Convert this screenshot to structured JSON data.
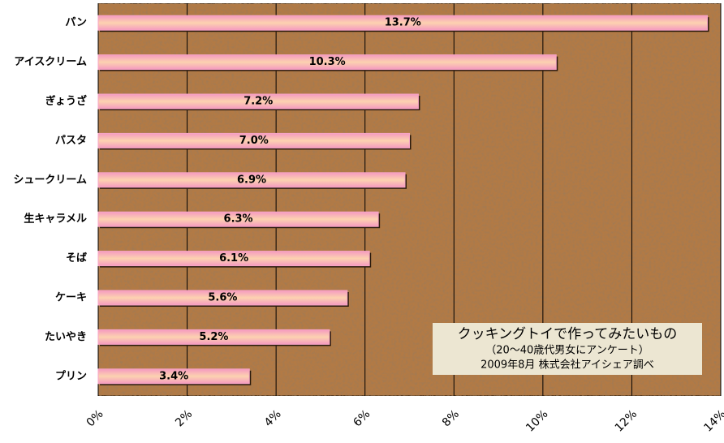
{
  "chart_data": {
    "type": "hbar",
    "categories": [
      "パン",
      "アイスクリーム",
      "ぎょうざ",
      "パスタ",
      "シュークリーム",
      "生キャラメル",
      "そば",
      "ケーキ",
      "たいやき",
      "プリン"
    ],
    "values": [
      13.7,
      10.3,
      7.2,
      7.0,
      6.9,
      6.3,
      6.1,
      5.6,
      5.2,
      3.4
    ],
    "value_labels": [
      "13.7%",
      "10.3%",
      "7.2%",
      "7.0%",
      "6.9%",
      "6.3%",
      "6.1%",
      "5.6%",
      "5.2%",
      "3.4%"
    ],
    "color": "#f7a6c6",
    "xlim": [
      0,
      14
    ],
    "xticks": [
      {
        "value": 0,
        "label": "0%"
      },
      {
        "value": 2,
        "label": "2%"
      },
      {
        "value": 4,
        "label": "4%"
      },
      {
        "value": 6,
        "label": "6%"
      },
      {
        "value": 8,
        "label": "8%"
      },
      {
        "value": 10,
        "label": "10%"
      },
      {
        "value": 12,
        "label": "12%"
      },
      {
        "value": 14,
        "label": "14%"
      }
    ],
    "grid": true,
    "title": "クッキングトイで作ってみたいもの",
    "subtitle": "（20～40歳代男女にアンケート）",
    "source": "2009年8月 株式会社アイシェア調べ"
  }
}
